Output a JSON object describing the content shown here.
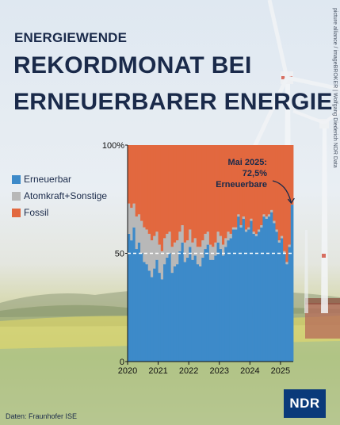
{
  "header": {
    "kicker": "ENERGIEWENDE",
    "title_line1": "REKORDMONAT BEI",
    "title_line2": "ERNEUERBARER ENERGIE"
  },
  "credit": "picture alliance / imageBROKER | Wolfgang Diederich  NDR Data",
  "source": "Daten: Fraunhofer ISE",
  "logo": "NDR",
  "colors": {
    "erneuerbar": "#3d8ac9",
    "atom": "#b8b8b8",
    "fossil": "#e2683f",
    "text": "#1a2a4a"
  },
  "chart_data": {
    "type": "bar",
    "stacked": true,
    "ylim": [
      0,
      100
    ],
    "y_ticks": [
      "0",
      "50",
      "100%"
    ],
    "x_tick_labels": [
      "2020",
      "2021",
      "2022",
      "2023",
      "2024",
      "2025"
    ],
    "reference_line": 50,
    "legend_placement": "left",
    "months": 65,
    "series": [
      {
        "name": "Erneuerbar",
        "values": [
          59,
          56,
          62,
          52,
          55,
          50,
          46,
          45,
          42,
          39,
          43,
          47,
          41,
          38,
          45,
          48,
          50,
          41,
          44,
          45,
          51,
          55,
          46,
          48,
          53,
          47,
          49,
          45,
          44,
          48,
          52,
          54,
          47,
          47,
          49,
          55,
          52,
          49,
          53,
          56,
          57,
          61,
          61,
          67,
          62,
          66,
          60,
          61,
          65,
          59,
          58,
          60,
          62,
          67,
          66,
          67,
          69,
          64,
          60,
          55,
          57,
          50,
          45,
          53,
          72.5
        ]
      },
      {
        "name": "Atomkraft+Sonstige",
        "values": [
          14,
          15,
          11,
          15,
          13,
          15,
          16,
          16,
          17,
          17,
          15,
          13,
          13,
          13,
          12,
          11,
          10,
          12,
          11,
          11,
          9,
          8,
          9,
          8,
          8,
          8,
          8,
          8,
          9,
          8,
          7,
          6,
          7,
          6,
          6,
          5,
          6,
          5,
          4,
          4,
          2,
          1,
          1,
          1,
          1,
          1,
          1,
          1,
          1,
          1,
          1,
          1,
          1,
          1,
          1,
          1,
          1,
          1,
          1,
          1,
          1,
          1,
          1,
          1,
          0
        ]
      },
      {
        "name": "Fossil",
        "values": [
          27,
          29,
          27,
          33,
          32,
          35,
          38,
          39,
          41,
          44,
          42,
          40,
          46,
          49,
          43,
          41,
          40,
          47,
          45,
          44,
          40,
          37,
          45,
          44,
          39,
          45,
          43,
          47,
          47,
          44,
          41,
          40,
          46,
          47,
          45,
          40,
          42,
          46,
          43,
          40,
          41,
          38,
          38,
          32,
          37,
          33,
          39,
          38,
          34,
          40,
          41,
          39,
          37,
          32,
          33,
          32,
          30,
          35,
          39,
          44,
          42,
          49,
          54,
          46,
          27.5
        ]
      }
    ],
    "annotation": {
      "line1": "Mai 2025:",
      "line2": "72,5%",
      "line3": "Erneuerbare"
    }
  }
}
